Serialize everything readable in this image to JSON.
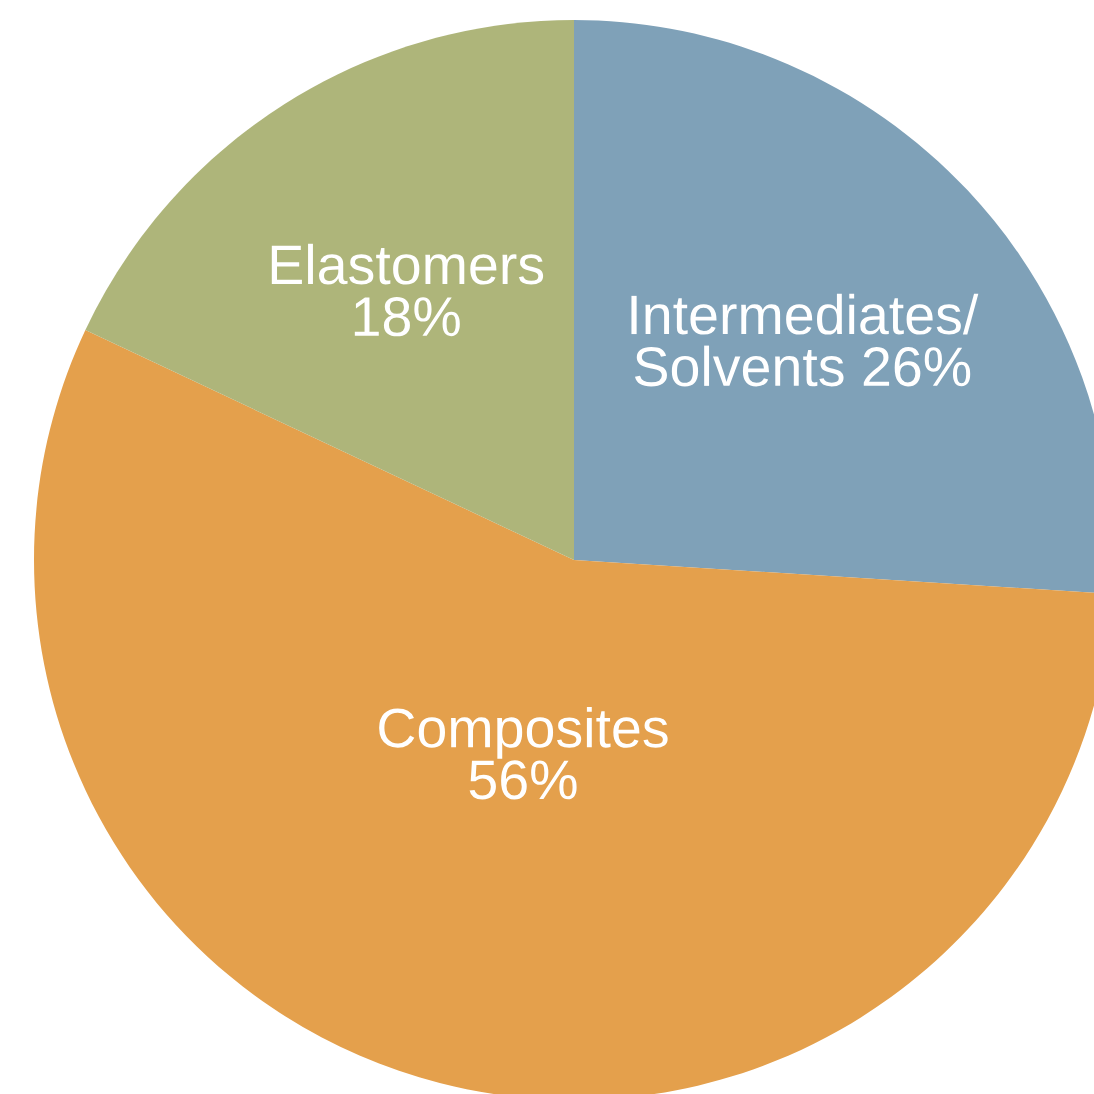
{
  "chart_data": {
    "type": "pie",
    "categories": [
      "Intermediates/ Solvents",
      "Composites",
      "Elastomers"
    ],
    "values": [
      26,
      56,
      18
    ],
    "colors": [
      "#7fa1b8",
      "#e4a04c",
      "#aeb57a"
    ],
    "value_labels": [
      "26%",
      "56%",
      "18%"
    ]
  }
}
